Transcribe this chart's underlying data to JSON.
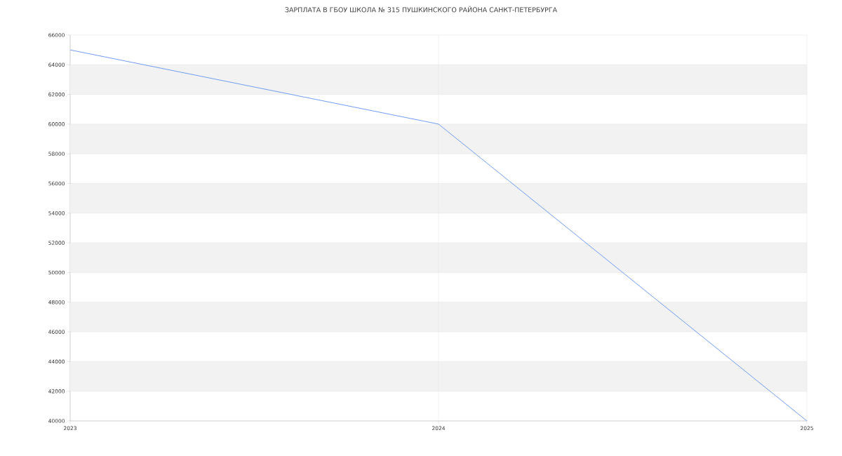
{
  "chart_data": {
    "type": "line",
    "title": "ЗАРПЛАТА В ГБОУ ШКОЛА № 315 ПУШКИНСКОГО РАЙОНА САНКТ-ПЕТЕРБУРГА",
    "x": [
      2023,
      2024,
      2025
    ],
    "series": [
      {
        "color": "#6f9df5",
        "values": [
          65000,
          60000,
          40000
        ]
      }
    ],
    "xlim": [
      2023,
      2025
    ],
    "xticks": [
      2023,
      2024,
      2025
    ],
    "ylim": [
      40000,
      66000
    ],
    "yticks": [
      40000,
      42000,
      44000,
      46000,
      48000,
      50000,
      52000,
      54000,
      56000,
      58000,
      60000,
      62000,
      64000,
      66000
    ],
    "grid": true,
    "legend": false,
    "marker": "none",
    "line_style": "solid"
  }
}
